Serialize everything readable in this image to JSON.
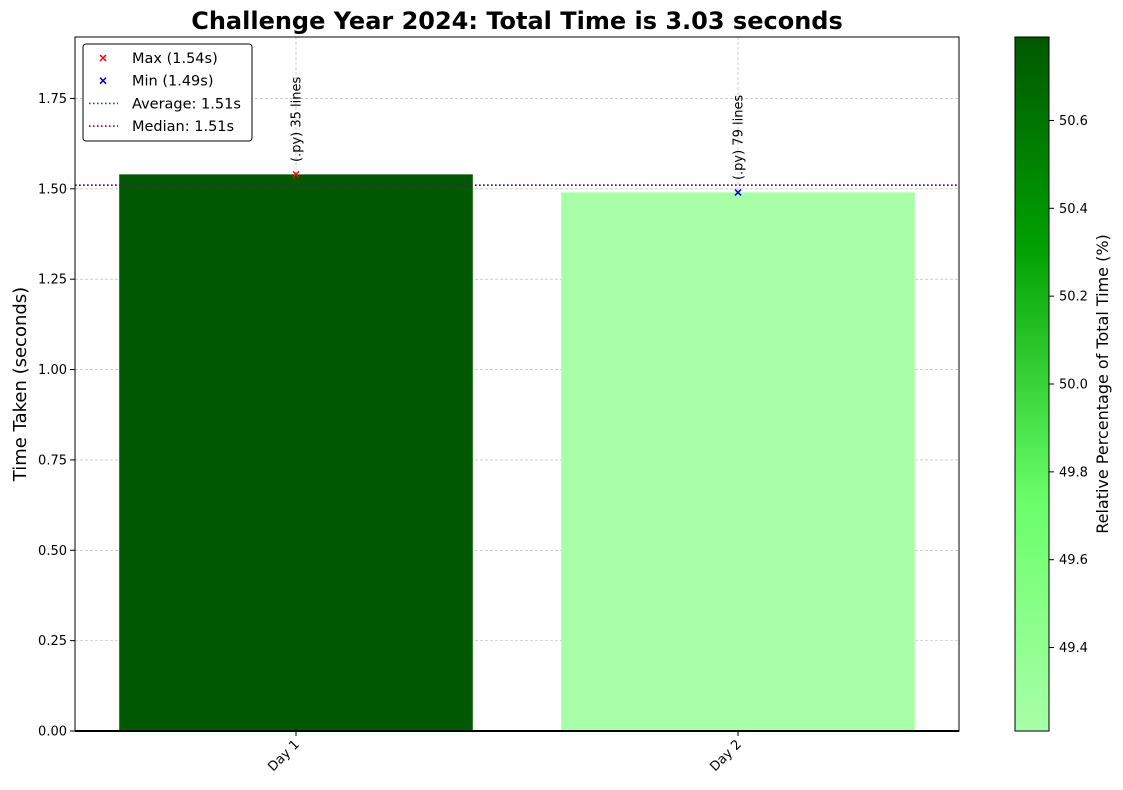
{
  "chart_data": {
    "type": "bar",
    "title": "Challenge Year 2024: Total Time is 3.03 seconds",
    "xlabel": "",
    "ylabel": "Time Taken (seconds)",
    "categories": [
      "Day 1",
      "Day 2"
    ],
    "values": [
      1.54,
      1.49
    ],
    "bar_colors": [
      "#005800",
      "#a8ffa8"
    ],
    "bar_annotations": [
      "(.py) 35 lines",
      "(.py) 79 lines"
    ],
    "ylim": [
      0,
      1.92
    ],
    "yticks": [
      0.0,
      0.25,
      0.5,
      0.75,
      1.0,
      1.25,
      1.5,
      1.75
    ],
    "ytick_labels": [
      "0.00",
      "0.25",
      "0.50",
      "0.75",
      "1.00",
      "1.25",
      "1.50",
      "1.75"
    ],
    "grid": true,
    "reference_lines": [
      {
        "name": "Average",
        "value": 1.51,
        "color": "#008000",
        "style": "dotted"
      },
      {
        "name": "Median",
        "value": 1.51,
        "color": "#800080",
        "style": "dotted"
      }
    ],
    "markers": [
      {
        "name": "Max",
        "category": "Day 1",
        "value": 1.54,
        "color": "#ff0000",
        "symbol": "x"
      },
      {
        "name": "Min",
        "category": "Day 2",
        "value": 1.49,
        "color": "#0000cc",
        "symbol": "x"
      }
    ],
    "legend": {
      "position": "top-left",
      "entries": [
        {
          "label": "Max (1.54s)",
          "kind": "marker",
          "color": "#ff0000"
        },
        {
          "label": "Min (1.49s)",
          "kind": "marker",
          "color": "#0000cc"
        },
        {
          "label": "Average: 1.51s",
          "kind": "line",
          "color": "#008000"
        },
        {
          "label": "Median: 1.51s",
          "kind": "line",
          "color": "#800080"
        }
      ]
    },
    "colorbar": {
      "label": "Relative Percentage of Total Time (%)",
      "range": [
        49.21,
        50.79
      ],
      "ticks": [
        49.4,
        49.6,
        49.8,
        50.0,
        50.2,
        50.4,
        50.6
      ],
      "tick_labels": [
        "49.4",
        "49.6",
        "49.8",
        "50.0",
        "50.2",
        "50.4",
        "50.6"
      ],
      "colors": [
        "#a8ffa8",
        "#6aff6a",
        "#00a000",
        "#005800"
      ]
    }
  }
}
